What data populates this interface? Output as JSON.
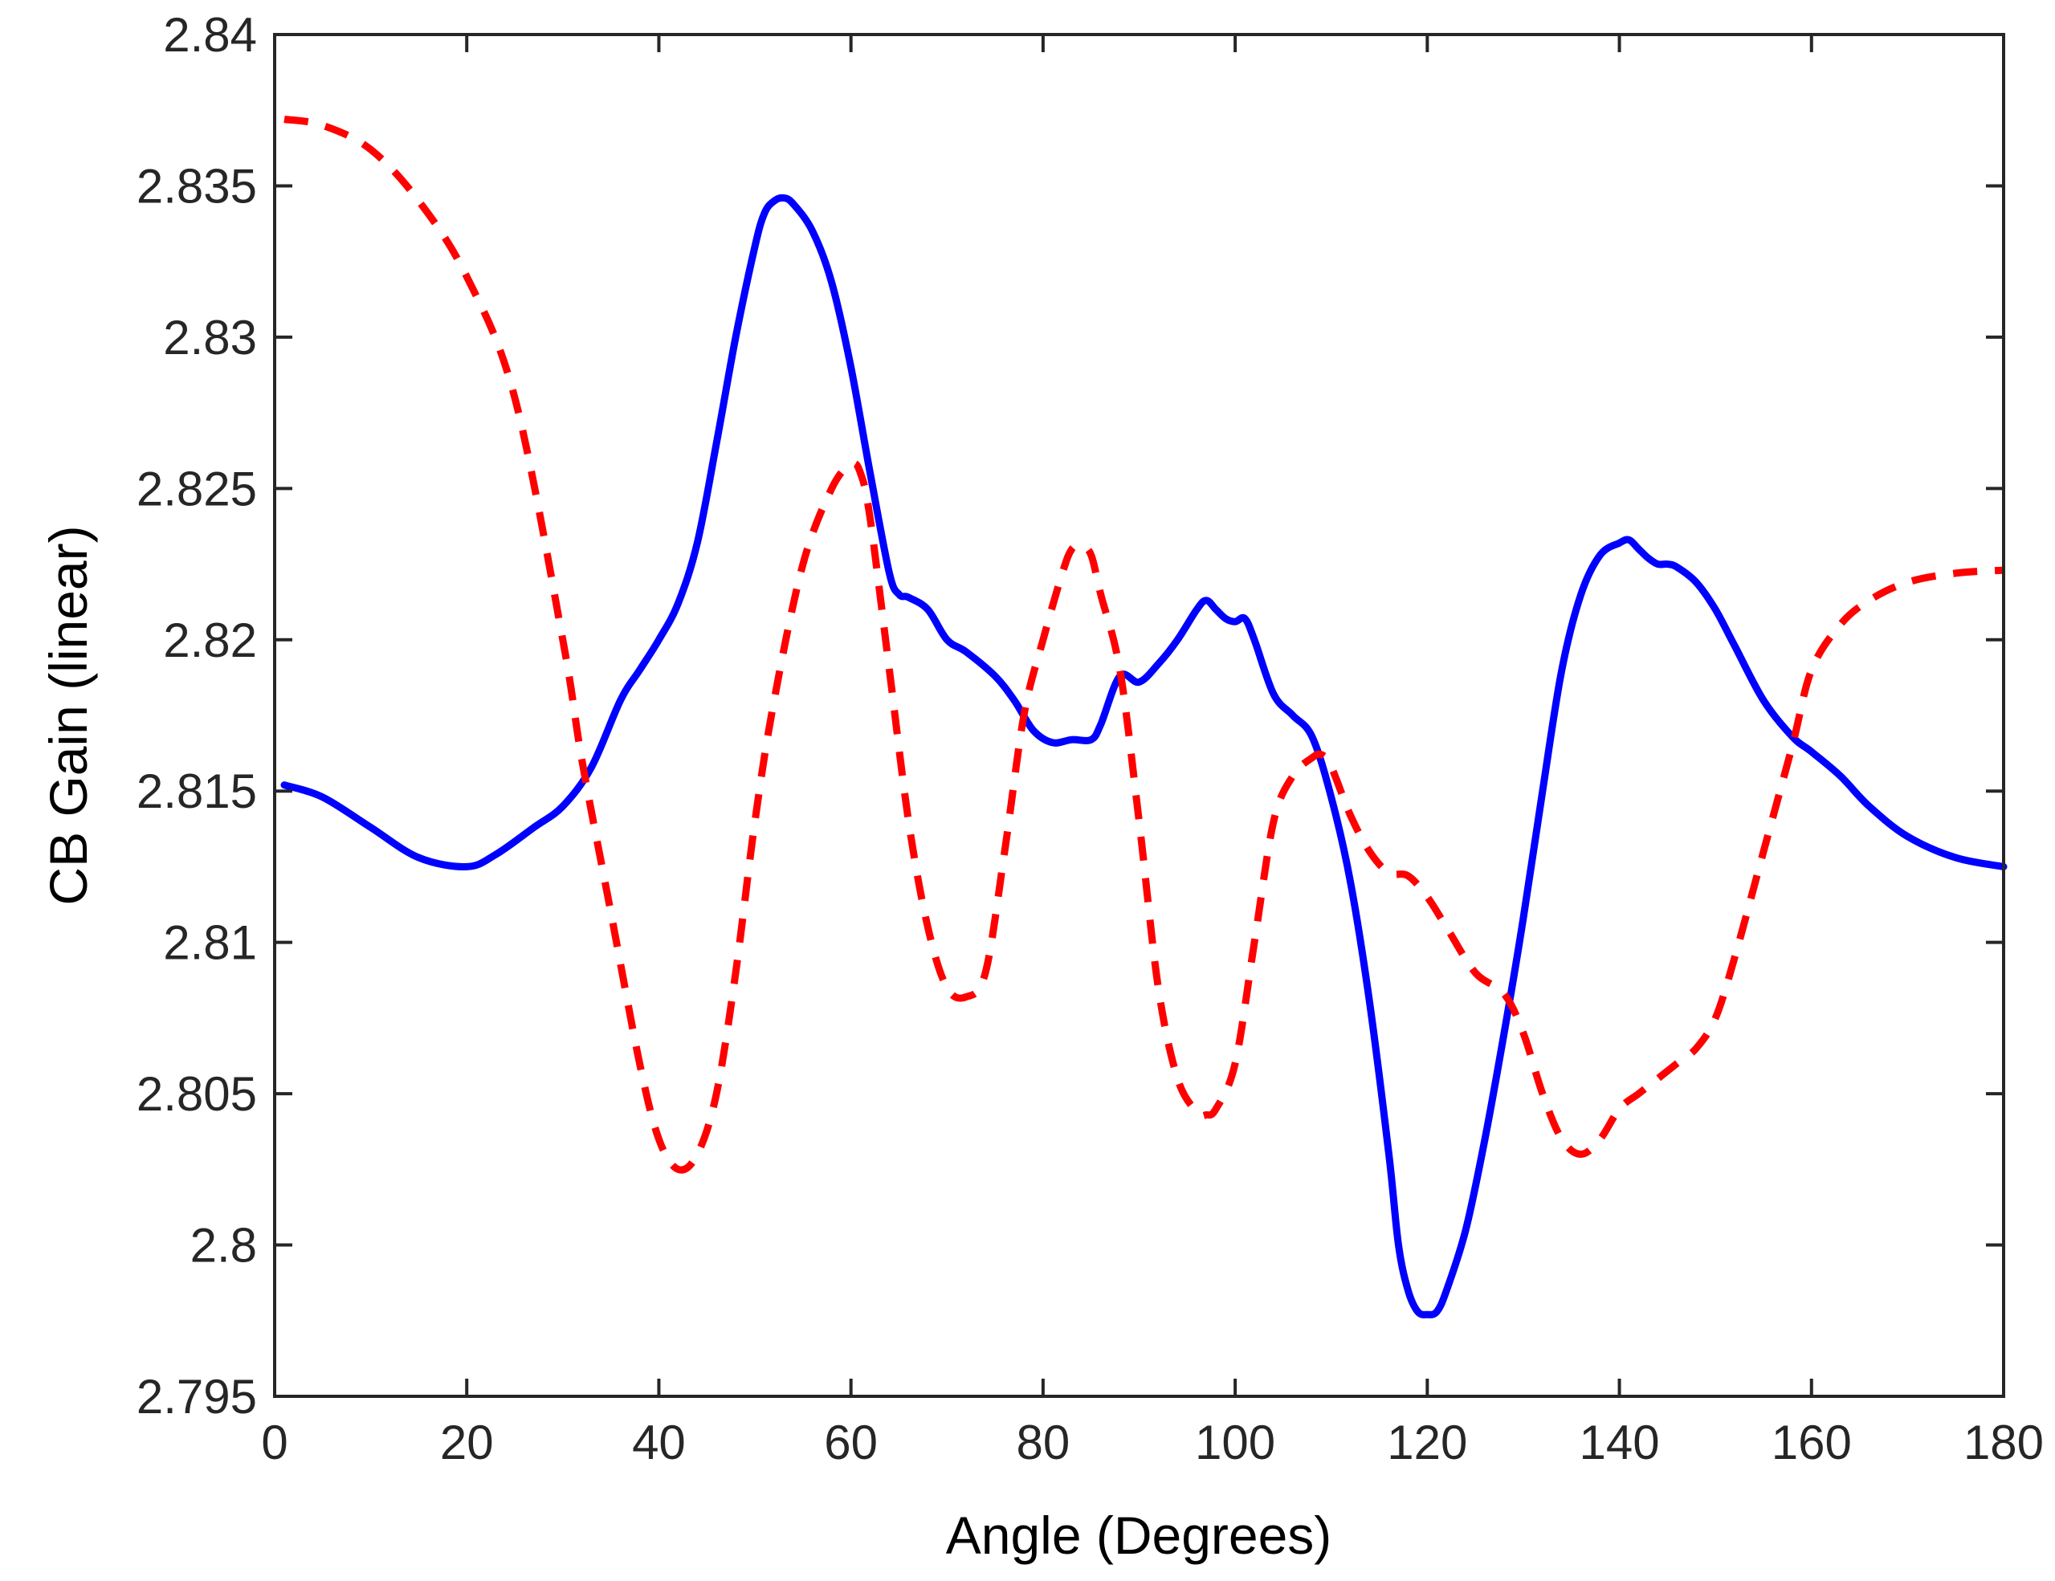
{
  "chart_data": {
    "type": "line",
    "title": "",
    "xlabel": "Angle (Degrees)",
    "ylabel": "CB Gain (linear)",
    "xlim": [
      0,
      180
    ],
    "ylim": [
      2.795,
      2.84
    ],
    "xticks": [
      "0",
      "20",
      "40",
      "60",
      "80",
      "100",
      "120",
      "140",
      "160",
      "180"
    ],
    "yticks": [
      "2.795",
      "2.8",
      "2.805",
      "2.81",
      "2.815",
      "2.82",
      "2.825",
      "2.83",
      "2.835",
      "2.84"
    ],
    "grid": false,
    "legend": "none",
    "series": [
      {
        "color": "#0000ff",
        "style": "solid",
        "x": [
          1,
          5,
          10,
          15,
          20,
          23,
          27,
          30,
          33,
          36,
          38,
          40,
          42,
          44,
          46,
          48,
          50,
          51,
          52,
          53,
          54,
          56,
          58,
          60,
          62,
          64,
          65,
          66,
          68,
          70,
          72,
          75,
          77,
          79,
          81,
          83,
          85,
          86,
          88,
          90,
          92,
          94,
          96,
          97,
          98,
          99,
          100,
          101,
          102,
          104,
          106,
          108,
          110,
          112,
          114,
          116,
          117,
          118,
          119,
          120,
          121,
          122,
          124,
          126,
          128,
          130,
          132,
          134,
          136,
          138,
          140,
          141,
          142,
          143,
          144,
          145,
          146,
          148,
          150,
          152,
          155,
          158,
          160,
          163,
          166,
          170,
          175,
          180
        ],
        "y": [
          2.8152,
          2.8148,
          2.8138,
          2.8128,
          2.8125,
          2.8129,
          2.8138,
          2.8145,
          2.8158,
          2.818,
          2.819,
          2.82,
          2.8212,
          2.8232,
          2.8265,
          2.83,
          2.833,
          2.8341,
          2.8345,
          2.8346,
          2.8344,
          2.8335,
          2.8318,
          2.829,
          2.8255,
          2.8222,
          2.8215,
          2.8214,
          2.821,
          2.82,
          2.8196,
          2.8188,
          2.818,
          2.817,
          2.8166,
          2.8167,
          2.8167,
          2.8172,
          2.8188,
          2.8186,
          2.8192,
          2.82,
          2.821,
          2.8213,
          2.821,
          2.8207,
          2.8206,
          2.8207,
          2.82,
          2.8182,
          2.8175,
          2.8168,
          2.8148,
          2.812,
          2.808,
          2.803,
          2.8,
          2.7985,
          2.7978,
          2.7977,
          2.7978,
          2.7985,
          2.8005,
          2.8035,
          2.807,
          2.8108,
          2.815,
          2.819,
          2.8215,
          2.8228,
          2.8232,
          2.8233,
          2.823,
          2.8227,
          2.8225,
          2.8225,
          2.8224,
          2.8219,
          2.821,
          2.8198,
          2.818,
          2.8168,
          2.8163,
          2.8155,
          2.8145,
          2.8135,
          2.8128,
          2.8125
        ]
      },
      {
        "color": "#ff0000",
        "style": "dashed",
        "x": [
          1,
          5,
          10,
          15,
          20,
          25,
          30,
          32,
          35,
          38,
          40,
          42,
          44,
          46,
          48,
          50,
          52,
          55,
          58,
          60,
          61,
          62,
          64,
          66,
          68,
          70,
          72,
          74,
          76,
          78,
          80,
          82,
          83,
          84,
          85,
          86,
          88,
          90,
          92,
          94,
          96,
          97,
          98,
          100,
          102,
          104,
          106,
          108,
          109,
          110,
          112,
          114,
          116,
          118,
          120,
          122,
          125,
          128,
          130,
          132,
          134,
          136,
          138,
          140,
          142,
          144,
          146,
          148,
          150,
          152,
          155,
          158,
          160,
          163,
          166,
          170,
          175,
          180
        ],
        "y": [
          2.8372,
          2.837,
          2.8362,
          2.8345,
          2.832,
          2.828,
          2.82,
          2.816,
          2.811,
          2.806,
          2.8035,
          2.8025,
          2.803,
          2.805,
          2.809,
          2.814,
          2.818,
          2.8225,
          2.825,
          2.8258,
          2.8255,
          2.824,
          2.819,
          2.814,
          2.8105,
          2.8085,
          2.8082,
          2.809,
          2.813,
          2.8175,
          2.82,
          2.8222,
          2.823,
          2.8231,
          2.8228,
          2.8215,
          2.819,
          2.814,
          2.8085,
          2.8055,
          2.8044,
          2.8043,
          2.8045,
          2.806,
          2.81,
          2.814,
          2.8155,
          2.8161,
          2.8162,
          2.8158,
          2.8142,
          2.813,
          2.8123,
          2.8122,
          2.8115,
          2.8105,
          2.809,
          2.8083,
          2.807,
          2.805,
          2.8035,
          2.803,
          2.8035,
          2.8045,
          2.805,
          2.8055,
          2.806,
          2.8065,
          2.8075,
          2.8095,
          2.813,
          2.8165,
          2.819,
          2.8205,
          2.8213,
          2.8219,
          2.8222,
          2.8223
        ]
      }
    ]
  }
}
